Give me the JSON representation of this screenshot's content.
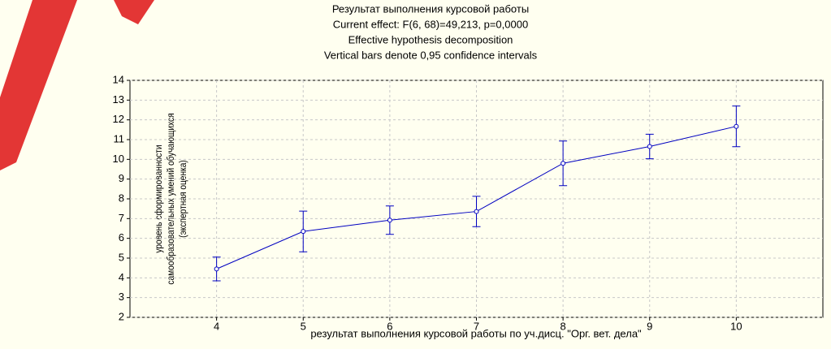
{
  "chart_data": {
    "type": "line",
    "title": [
      "Результат выполнения курсовой работы",
      "Current effect: F(6, 68)=49,213, p=0,0000",
      "Effective hypothesis decomposition",
      "Vertical bars denote 0,95 confidence intervals"
    ],
    "xlabel": "результат выполнения курсовой работы по уч.дисц. \"Орг. вет. дела\"",
    "ylabel": [
      "уровень сформированности",
      "самообразовательных умений обучающихся",
      "(экспертная оценка)"
    ],
    "x": [
      4,
      5,
      6,
      7,
      8,
      9,
      10
    ],
    "values": [
      4.45,
      6.35,
      6.92,
      7.36,
      9.8,
      10.65,
      11.67
    ],
    "errors": [
      0.6,
      1.03,
      0.72,
      0.77,
      1.13,
      0.62,
      1.03
    ],
    "color": "#0000c0",
    "xlim": [
      3,
      11
    ],
    "xticks": [
      4,
      5,
      6,
      7,
      8,
      9,
      10
    ],
    "ylim": [
      2,
      14
    ],
    "yticks": [
      2,
      3,
      4,
      5,
      6,
      7,
      8,
      9,
      10,
      11,
      12,
      13,
      14
    ],
    "grid": true
  }
}
